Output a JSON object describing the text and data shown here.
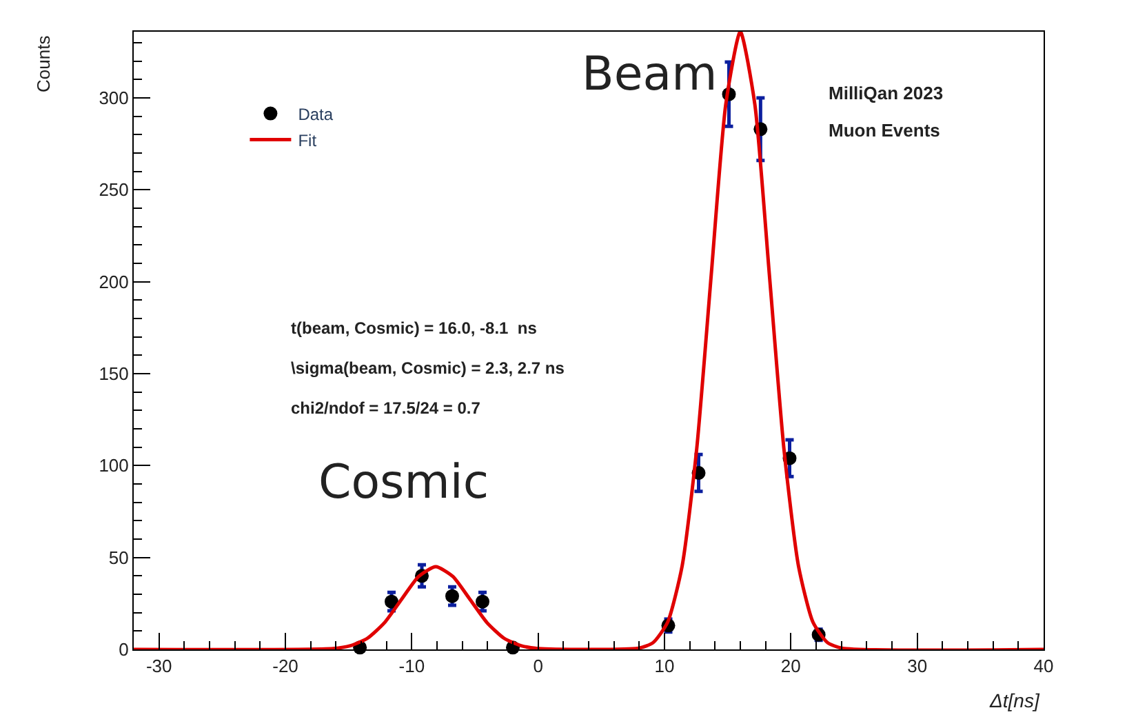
{
  "chart_data": {
    "type": "scatter",
    "xlabel": "Δt[ns]",
    "ylabel": "Counts",
    "xlim": [
      -32,
      40
    ],
    "xticks": [
      -30,
      -20,
      -10,
      0,
      10,
      20,
      30,
      40
    ],
    "ylim": [
      0,
      336
    ],
    "yticks": [
      0,
      50,
      100,
      150,
      200,
      250,
      300
    ],
    "grid": false,
    "legend": "top left",
    "series": [
      {
        "name": "Data",
        "marker": "circle",
        "color": "#000000",
        "x": [
          -14.1,
          -11.6,
          -9.2,
          -6.8,
          -4.4,
          -2.0,
          10.3,
          12.7,
          15.1,
          17.6,
          19.9,
          22.2
        ],
        "values": [
          1,
          26,
          40,
          29,
          26,
          1,
          13,
          96,
          302,
          283,
          104,
          8
        ],
        "errors": [
          1,
          5,
          6,
          5,
          5,
          1,
          3.5,
          10,
          17.5,
          17,
          10,
          3
        ]
      },
      {
        "name": "Fit",
        "type": "line",
        "marker": "none",
        "color": "#e00000",
        "x": [
          -32,
          -16.2,
          -14.85,
          -13.5,
          -12.15,
          -10.8,
          -9.45,
          -8.1,
          -6.75,
          -5.4,
          -4.05,
          -2.7,
          -1.35,
          0,
          7.95,
          9.1,
          10.25,
          11.4,
          12.55,
          13.7,
          14.85,
          16,
          17.15,
          18.3,
          19.45,
          20.6,
          21.75,
          22.9,
          24.05,
          40
        ],
        "values": [
          0,
          0.5,
          2.0,
          6.1,
          14.6,
          27.3,
          39.7,
          45,
          39.7,
          27.3,
          14.6,
          6.1,
          2.0,
          0.5,
          0.7,
          3.7,
          14.8,
          45.5,
          109.1,
          203.8,
          296.5,
          336,
          296.5,
          203.8,
          109.1,
          45.5,
          14.8,
          3.7,
          0.7,
          0
        ]
      }
    ],
    "annotations": [
      "Beam",
      "Cosmic",
      "MilliQan 2023",
      "Muon Events",
      "t(beam, Cosmic) = 16.0, -8.1  ns",
      "\\sigma(beam, Cosmic) = 2.3, 2.7 ns",
      "chi2/ndof = 17.5/24 = 0.7"
    ]
  }
}
